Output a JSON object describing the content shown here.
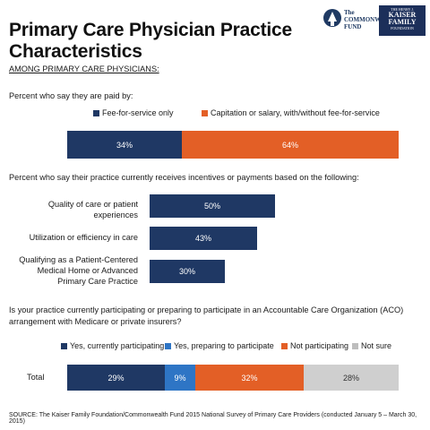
{
  "title": "Primary Care Physician Practice Characteristics",
  "logos": {
    "commonwealth": {
      "line1": "The",
      "line2": "COMMONWEALTH",
      "line3": "FUND"
    },
    "kff": {
      "line1": "THE HENRY J.",
      "line2": "KAISER",
      "line3": "FAMILY",
      "line4": "FOUNDATION"
    }
  },
  "subhead": "AMONG PRIMARY CARE PHYSICIANS:",
  "colors": {
    "navy": "#1f3864",
    "orange": "#e35f26",
    "blue": "#2e75c5",
    "gray": "#cfcfcf"
  },
  "chart_data": [
    {
      "type": "bar",
      "orientation": "horizontal-stacked",
      "title": "Percent who say they are paid by:",
      "legend": [
        "Fee-for-service only",
        "Capitation or salary, with/without fee-for-service"
      ],
      "categories": [
        ""
      ],
      "series": [
        {
          "name": "Fee-for-service only",
          "values": [
            34
          ],
          "label": "34%"
        },
        {
          "name": "Capitation or salary, with/without fee-for-service",
          "values": [
            64
          ],
          "label": "64%"
        }
      ]
    },
    {
      "type": "bar",
      "orientation": "horizontal",
      "title": "Percent who say their practice currently receives incentives or payments based on the following:",
      "categories": [
        "Quality of care or patient experiences",
        "Utilization or efficiency in care",
        "Qualifying as a Patient-Centered Medical Home or Advanced Primary Care Practice"
      ],
      "category_lines": [
        [
          "Quality of care or patient",
          "experiences"
        ],
        [
          "Utilization or efficiency in care"
        ],
        [
          "Qualifying as a Patient-Centered",
          "Medical Home or Advanced",
          "Primary Care Practice"
        ]
      ],
      "values": [
        50,
        43,
        30
      ],
      "labels": [
        "50%",
        "43%",
        "30%"
      ]
    },
    {
      "type": "bar",
      "orientation": "horizontal-stacked",
      "title": "Is your practice currently participating or preparing to participate in an Accountable Care Organization (ACO) arrangement with Medicare or private insurers?",
      "title_lines": [
        "Is your practice currently participating or preparing to participate in an Accountable Care Organization (ACO)",
        "arrangement with Medicare or private insurers?"
      ],
      "legend": [
        "Yes, currently participating",
        "Yes, preparing to participate",
        "Not participating",
        "Not sure"
      ],
      "categories": [
        "Total"
      ],
      "series": [
        {
          "name": "Yes, currently participating",
          "values": [
            29
          ],
          "label": "29%"
        },
        {
          "name": "Yes, preparing to participate",
          "values": [
            9
          ],
          "label": "9%"
        },
        {
          "name": "Not participating",
          "values": [
            32
          ],
          "label": "32%"
        },
        {
          "name": "Not sure",
          "values": [
            28
          ],
          "label": "28%"
        }
      ]
    }
  ],
  "source": "SOURCE: The Kaiser Family Foundation/Commonwealth Fund 2015 National Survey of Primary Care Providers (conducted January 5 – March 30, 2015)"
}
